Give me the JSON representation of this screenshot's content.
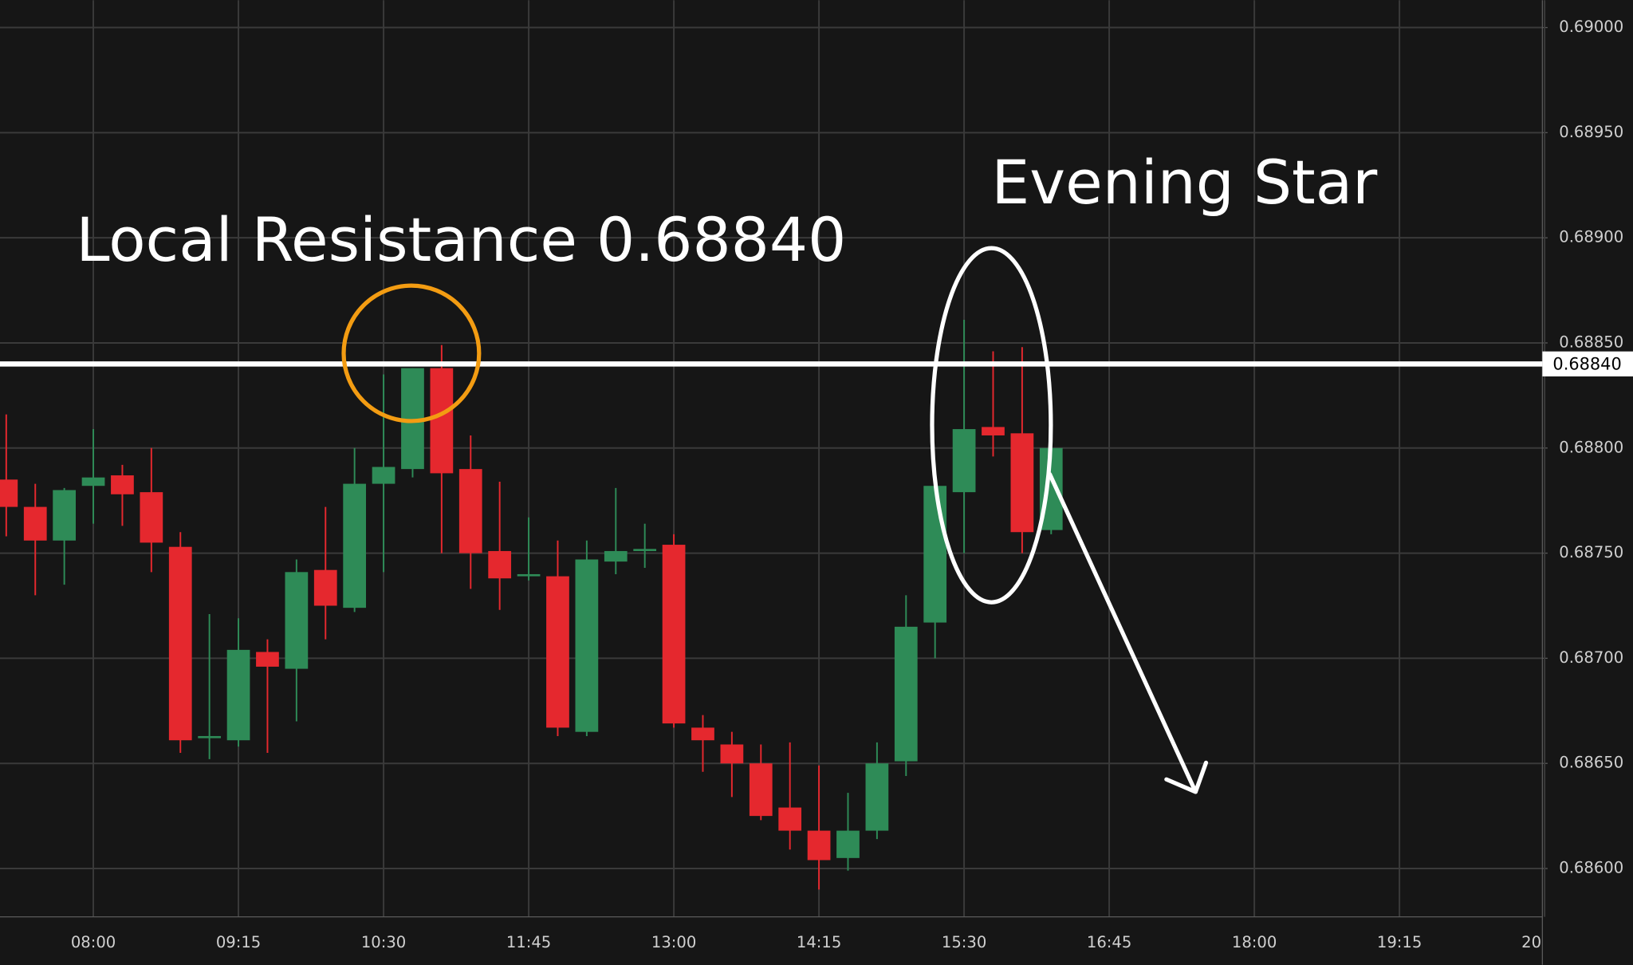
{
  "chart_data": {
    "type": "candlestick",
    "categories": [
      null,
      null,
      null,
      "08:00",
      null,
      null,
      null,
      null,
      "09:15",
      null,
      null,
      null,
      null,
      "10:30",
      null,
      null,
      null,
      null,
      "11:45",
      null,
      null,
      null,
      null,
      "13:00",
      null,
      null,
      null,
      null,
      "14:15",
      null,
      null,
      null,
      null,
      "15:30",
      null,
      null,
      null,
      null,
      "16:45",
      null,
      null,
      null,
      null,
      "18:00",
      null,
      null,
      null,
      null,
      "19:15",
      null,
      null,
      null,
      null,
      "20"
    ],
    "open": [
      0.68785,
      0.68772,
      0.68756,
      0.68782,
      0.68787,
      0.68779,
      0.68753,
      0.68662,
      0.68661,
      0.68703,
      0.68695,
      0.68742,
      0.68724,
      0.68783,
      0.6879,
      0.68838,
      0.6879,
      0.68751,
      0.68739,
      0.68739,
      0.68665,
      0.68746,
      0.68751,
      0.68754,
      0.68667,
      0.68659,
      0.6865,
      0.68629,
      0.68618,
      0.68605,
      0.68618,
      0.68651,
      0.68717,
      0.68779,
      0.6881,
      0.68807,
      0.68761,
      null,
      null,
      null,
      null,
      null,
      null,
      null,
      null,
      null,
      null,
      null,
      null,
      null,
      null,
      null,
      null,
      null
    ],
    "high": [
      0.68816,
      0.68783,
      0.68781,
      0.68809,
      0.68792,
      0.688,
      0.6876,
      0.68721,
      0.68719,
      0.68709,
      0.68747,
      0.68772,
      0.688,
      0.68835,
      0.68838,
      0.68849,
      0.68806,
      0.68784,
      0.68767,
      0.68756,
      0.68756,
      0.68781,
      0.68764,
      0.68759,
      0.68673,
      0.68665,
      0.68659,
      0.6866,
      0.68649,
      0.68636,
      0.6866,
      0.6873,
      0.68783,
      0.68861,
      0.68846,
      0.68848,
      0.688,
      null,
      null,
      null,
      null,
      null,
      null,
      null,
      null,
      null,
      null,
      null,
      null,
      null,
      null,
      null,
      null,
      null
    ],
    "low": [
      0.68758,
      0.6873,
      0.68735,
      0.68764,
      0.68763,
      0.68741,
      0.68655,
      0.68652,
      0.68658,
      0.68655,
      0.6867,
      0.68709,
      0.68722,
      0.68741,
      0.68786,
      0.6875,
      0.68733,
      0.68723,
      0.68737,
      0.68663,
      0.68663,
      0.6874,
      0.68743,
      0.68667,
      0.68646,
      0.68634,
      0.68623,
      0.68609,
      0.6859,
      0.68599,
      0.68614,
      0.68644,
      0.687,
      0.6875,
      0.68796,
      0.6875,
      0.68759,
      null,
      null,
      null,
      null,
      null,
      null,
      null,
      null,
      null,
      null,
      null,
      null,
      null,
      null,
      null,
      null,
      null
    ],
    "close": [
      0.68772,
      0.68756,
      0.6878,
      0.68786,
      0.68778,
      0.68755,
      0.68661,
      0.68663,
      0.68704,
      0.68696,
      0.68741,
      0.68725,
      0.68783,
      0.68791,
      0.68838,
      0.68788,
      0.6875,
      0.68738,
      0.6874,
      0.68667,
      0.68747,
      0.68751,
      0.68752,
      0.68669,
      0.68661,
      0.6865,
      0.68625,
      0.68618,
      0.68604,
      0.68618,
      0.6865,
      0.68715,
      0.68782,
      0.68809,
      0.68806,
      0.6876,
      0.688,
      null,
      null,
      null,
      null,
      null,
      null,
      null,
      null,
      null,
      null,
      null,
      null,
      null,
      null,
      null,
      null,
      null
    ],
    "up_color": "#2e8b57",
    "down_color": "#e5282e",
    "ylim": [
      0.68577,
      0.69013
    ],
    "yticks": [
      {
        "value": 0.686,
        "label": "0.68600"
      },
      {
        "value": 0.6865,
        "label": "0.68650"
      },
      {
        "value": 0.687,
        "label": "0.68700"
      },
      {
        "value": 0.6875,
        "label": "0.68750"
      },
      {
        "value": 0.688,
        "label": "0.68800"
      },
      {
        "value": 0.6885,
        "label": "0.68850"
      },
      {
        "value": 0.689,
        "label": "0.68900"
      },
      {
        "value": 0.6895,
        "label": "0.68950"
      },
      {
        "value": 0.69,
        "label": "0.69000"
      }
    ],
    "grid": true,
    "hline": {
      "value": 0.6884,
      "label": "0.68840",
      "color": "#ffffff"
    },
    "annotations": [
      "Local Resistance 0.68840",
      "Evening Star"
    ]
  }
}
